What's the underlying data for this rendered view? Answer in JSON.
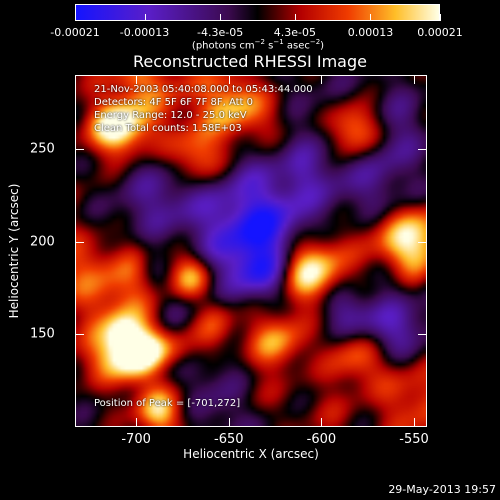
{
  "colorbar": {
    "ticks": [
      "-0.00021",
      "-0.00013",
      "-4.3e-05",
      "4.3e-05",
      "0.00013",
      "0.00021"
    ],
    "tick_values": [
      -0.00021,
      -0.00013,
      -4.3e-05,
      4.3e-05,
      0.00013,
      0.00021
    ],
    "range": [
      -0.00021,
      0.00021
    ],
    "units_prefix": "(photons cm",
    "units_exp1": "−2",
    "units_mid": " s",
    "units_exp2": "−1",
    "units_mid2": " asec",
    "units_exp3": "−2",
    "units_suffix": ")"
  },
  "plot": {
    "title": "Reconstructed RHESSI Image",
    "info_lines": [
      "21-Nov-2003 05:40:08.000 to 05:43:44.000",
      "Detectors: 4F 5F 6F 7F 8F, Att 0",
      "Energy Range: 12.0 - 25.0 keV",
      "Clean   Total counts: 1.58E+03"
    ],
    "peak_label": "Position of Peak = [-701,272]",
    "x_axis_title": "Heliocentric X (arcsec)",
    "y_axis_title": "Heliocentric Y (arcsec)",
    "x_ticks": [
      "-700",
      "-650",
      "-600",
      "-550"
    ],
    "x_tick_values": [
      -700,
      -650,
      -600,
      -550
    ],
    "y_ticks": [
      "250",
      "200",
      "150"
    ],
    "y_tick_values": [
      250,
      200,
      150
    ],
    "x_range": [
      -733,
      -543
    ],
    "y_range": [
      100,
      290
    ]
  },
  "timestamp": "29-May-2013 19:57",
  "colors": {
    "cold": "#2020ff",
    "mid": "#000000",
    "warm": "#e02000",
    "hot": "#ffd040",
    "peak": "#ffffa0"
  }
}
